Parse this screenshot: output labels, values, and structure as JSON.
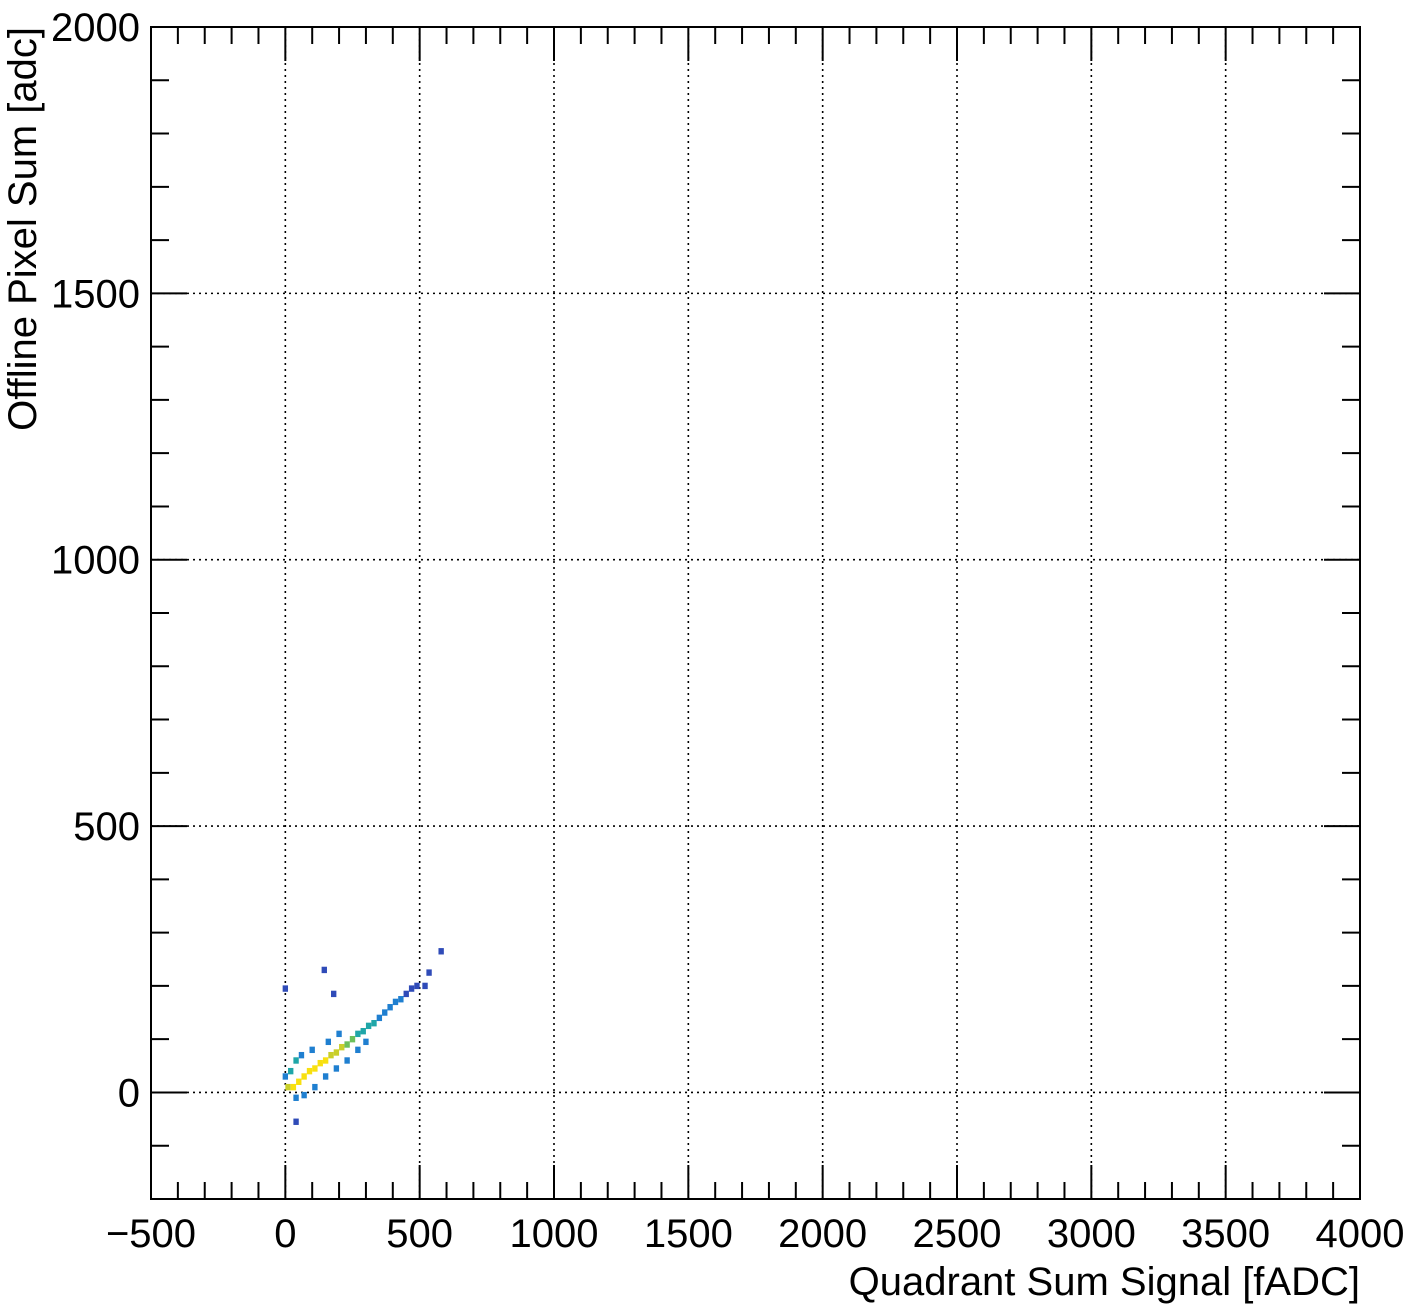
{
  "chart_data": {
    "type": "heatmap",
    "title": "",
    "xlabel": "Quadrant Sum Signal [fADC]",
    "ylabel": "Offline Pixel Sum [adc]",
    "xlim": [
      -500,
      4000
    ],
    "ylim": [
      -200,
      2000
    ],
    "xticks": [
      -500,
      0,
      500,
      1000,
      1500,
      2000,
      2500,
      3000,
      3500,
      4000
    ],
    "xtick_labels": [
      "−500",
      "0",
      "500",
      "1000",
      "1500",
      "2000",
      "2500",
      "3000",
      "3500",
      "4000"
    ],
    "yticks": [
      0,
      500,
      1000,
      1500,
      2000
    ],
    "ytick_labels": [
      "0",
      "500",
      "1000",
      "1500",
      "2000"
    ],
    "grid": true,
    "grid_style": "dotted",
    "colormap": [
      "#2f4bb8",
      "#1f7fd0",
      "#1fa6a8",
      "#6cc05a",
      "#c9cf2a",
      "#f8e00f"
    ],
    "description_of_density": "Elongated correlated band from about (0,0) to (500,200); peak density around x 80-200, y 30-80",
    "bins": [
      {
        "x": 10,
        "y": 10,
        "z": 0.7
      },
      {
        "x": 30,
        "y": 10,
        "z": 0.9
      },
      {
        "x": 50,
        "y": 20,
        "z": 1.0
      },
      {
        "x": 70,
        "y": 30,
        "z": 1.0
      },
      {
        "x": 90,
        "y": 40,
        "z": 1.0
      },
      {
        "x": 110,
        "y": 45,
        "z": 1.0
      },
      {
        "x": 130,
        "y": 55,
        "z": 0.95
      },
      {
        "x": 150,
        "y": 60,
        "z": 0.9
      },
      {
        "x": 170,
        "y": 70,
        "z": 0.85
      },
      {
        "x": 190,
        "y": 75,
        "z": 0.8
      },
      {
        "x": 210,
        "y": 85,
        "z": 0.75
      },
      {
        "x": 230,
        "y": 90,
        "z": 0.65
      },
      {
        "x": 250,
        "y": 100,
        "z": 0.55
      },
      {
        "x": 270,
        "y": 110,
        "z": 0.45
      },
      {
        "x": 290,
        "y": 115,
        "z": 0.4
      },
      {
        "x": 310,
        "y": 125,
        "z": 0.35
      },
      {
        "x": 330,
        "y": 130,
        "z": 0.3
      },
      {
        "x": 350,
        "y": 140,
        "z": 0.25
      },
      {
        "x": 370,
        "y": 150,
        "z": 0.2
      },
      {
        "x": 390,
        "y": 160,
        "z": 0.15
      },
      {
        "x": 410,
        "y": 170,
        "z": 0.12
      },
      {
        "x": 430,
        "y": 175,
        "z": 0.1
      },
      {
        "x": 450,
        "y": 185,
        "z": 0.08
      },
      {
        "x": 470,
        "y": 195,
        "z": 0.06
      },
      {
        "x": 490,
        "y": 200,
        "z": 0.05
      },
      {
        "x": 20,
        "y": 40,
        "z": 0.35
      },
      {
        "x": 40,
        "y": 60,
        "z": 0.3
      },
      {
        "x": 60,
        "y": 70,
        "z": 0.25
      },
      {
        "x": 100,
        "y": 80,
        "z": 0.25
      },
      {
        "x": 40,
        "y": -10,
        "z": 0.25
      },
      {
        "x": 70,
        "y": -5,
        "z": 0.2
      },
      {
        "x": 110,
        "y": 10,
        "z": 0.2
      },
      {
        "x": 150,
        "y": 30,
        "z": 0.2
      },
      {
        "x": 190,
        "y": 45,
        "z": 0.18
      },
      {
        "x": 230,
        "y": 60,
        "z": 0.15
      },
      {
        "x": 270,
        "y": 80,
        "z": 0.12
      },
      {
        "x": 300,
        "y": 95,
        "z": 0.1
      },
      {
        "x": 200,
        "y": 110,
        "z": 0.15
      },
      {
        "x": 160,
        "y": 95,
        "z": 0.2
      },
      {
        "x": 0,
        "y": 195,
        "z": 0.02
      },
      {
        "x": 145,
        "y": 230,
        "z": 0.02
      },
      {
        "x": 180,
        "y": 185,
        "z": 0.02
      },
      {
        "x": 580,
        "y": 265,
        "z": 0.02
      },
      {
        "x": 535,
        "y": 225,
        "z": 0.02
      },
      {
        "x": 520,
        "y": 200,
        "z": 0.02
      },
      {
        "x": 40,
        "y": -55,
        "z": 0.02
      },
      {
        "x": 0,
        "y": 30,
        "z": 0.1
      }
    ]
  }
}
